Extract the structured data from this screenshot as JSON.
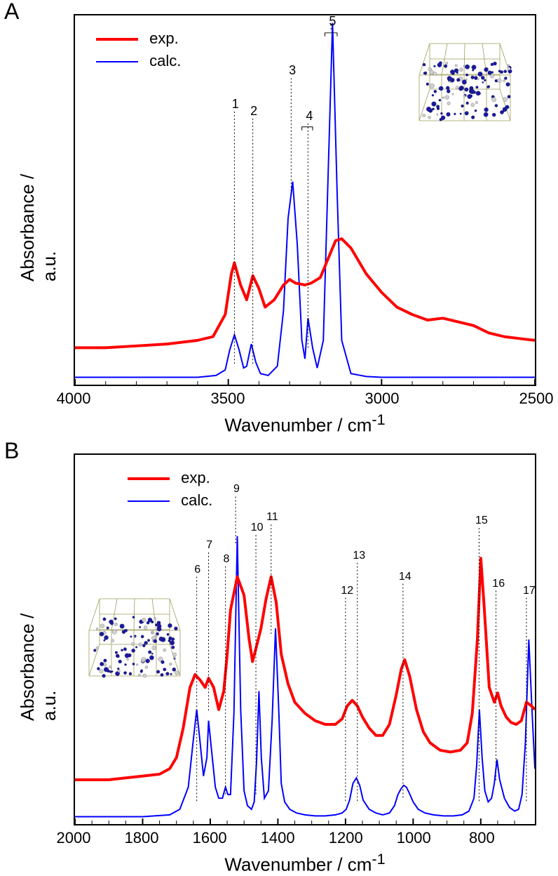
{
  "panelA": {
    "label": "A",
    "legend": {
      "exp": "exp.",
      "calc": "calc."
    },
    "colors": {
      "exp": "#ff0000",
      "calc": "#0000ff",
      "axis": "#000000",
      "text": "#000000",
      "bg": "#ffffff"
    },
    "line_width_exp": 4,
    "line_width_calc": 2,
    "xlabel": "Wavenumber / cm",
    "xlabel_sup": "-1",
    "ylabel": "Absorbance / a.u.",
    "xlim": [
      4000,
      2500
    ],
    "xticks": [
      4000,
      3500,
      3000,
      2500
    ],
    "fontsize_label": 26,
    "fontsize_tick": 22,
    "fontsize_peak": 18,
    "peak_labels": [
      "1",
      "2",
      "3",
      "4",
      "5"
    ],
    "peak_x_positions": [
      3480,
      3420,
      3295,
      3240,
      3165
    ],
    "exp_curve": {
      "x": [
        4000,
        3900,
        3800,
        3700,
        3600,
        3550,
        3510,
        3490,
        3480,
        3460,
        3440,
        3420,
        3400,
        3380,
        3350,
        3320,
        3300,
        3280,
        3250,
        3230,
        3200,
        3180,
        3150,
        3130,
        3100,
        3050,
        3000,
        2950,
        2900,
        2850,
        2800,
        2750,
        2700,
        2650,
        2600,
        2550,
        2500
      ],
      "y": [
        0.1,
        0.1,
        0.105,
        0.11,
        0.12,
        0.13,
        0.19,
        0.3,
        0.33,
        0.27,
        0.23,
        0.295,
        0.26,
        0.21,
        0.23,
        0.27,
        0.285,
        0.275,
        0.27,
        0.275,
        0.29,
        0.33,
        0.39,
        0.395,
        0.37,
        0.3,
        0.25,
        0.21,
        0.19,
        0.175,
        0.18,
        0.17,
        0.16,
        0.14,
        0.13,
        0.125,
        0.12
      ]
    },
    "calc_curve": {
      "x": [
        4000,
        3600,
        3540,
        3510,
        3495,
        3480,
        3465,
        3450,
        3440,
        3425,
        3410,
        3395,
        3370,
        3340,
        3320,
        3305,
        3290,
        3275,
        3260,
        3250,
        3240,
        3225,
        3210,
        3190,
        3175,
        3160,
        3145,
        3130,
        3100,
        3050,
        3000,
        2900,
        2800,
        2700,
        2600,
        2500
      ],
      "y": [
        0.02,
        0.02,
        0.025,
        0.04,
        0.095,
        0.135,
        0.095,
        0.045,
        0.05,
        0.11,
        0.06,
        0.03,
        0.025,
        0.05,
        0.2,
        0.45,
        0.55,
        0.38,
        0.12,
        0.07,
        0.18,
        0.1,
        0.045,
        0.12,
        0.55,
        0.98,
        0.52,
        0.12,
        0.03,
        0.022,
        0.02,
        0.02,
        0.02,
        0.02,
        0.02,
        0.02
      ]
    }
  },
  "panelB": {
    "label": "B",
    "legend": {
      "exp": "exp.",
      "calc": "calc."
    },
    "colors": {
      "exp": "#ff0000",
      "calc": "#0000ff",
      "axis": "#000000",
      "text": "#000000",
      "bg": "#ffffff",
      "inset_grid": "#9d9d5a",
      "inset_atom1": "#1a1aa0",
      "inset_atom2": "#d0d0d0"
    },
    "line_width_exp": 4,
    "line_width_calc": 2,
    "xlabel": "Wavenumber / cm",
    "xlabel_sup": "-1",
    "ylabel": "Absorbance / a.u.",
    "xlim": [
      2000,
      640
    ],
    "xticks": [
      2000,
      1800,
      1600,
      1400,
      1200,
      1000,
      800
    ],
    "fontsize_label": 26,
    "fontsize_tick": 22,
    "fontsize_peak": 16,
    "peak_labels": [
      "6",
      "7",
      "8",
      "9",
      "10",
      "11",
      "12",
      "13",
      "14",
      "15",
      "16",
      "17"
    ],
    "peak_x_positions": [
      1640,
      1605,
      1555,
      1525,
      1465,
      1420,
      1200,
      1165,
      1030,
      805,
      755,
      665
    ],
    "exp_curve": {
      "x": [
        2000,
        1900,
        1800,
        1750,
        1720,
        1700,
        1680,
        1660,
        1645,
        1630,
        1615,
        1605,
        1590,
        1575,
        1560,
        1550,
        1540,
        1520,
        1500,
        1485,
        1475,
        1465,
        1450,
        1435,
        1420,
        1405,
        1390,
        1370,
        1350,
        1320,
        1290,
        1260,
        1230,
        1210,
        1195,
        1180,
        1165,
        1150,
        1130,
        1110,
        1090,
        1070,
        1050,
        1035,
        1025,
        1010,
        990,
        970,
        950,
        920,
        890,
        860,
        840,
        825,
        810,
        800,
        790,
        775,
        760,
        750,
        740,
        725,
        710,
        695,
        680,
        665,
        650,
        640
      ],
      "y": [
        0.12,
        0.12,
        0.13,
        0.135,
        0.15,
        0.18,
        0.26,
        0.37,
        0.405,
        0.39,
        0.37,
        0.395,
        0.37,
        0.31,
        0.36,
        0.46,
        0.58,
        0.67,
        0.62,
        0.5,
        0.44,
        0.475,
        0.53,
        0.61,
        0.67,
        0.6,
        0.46,
        0.38,
        0.33,
        0.3,
        0.28,
        0.27,
        0.27,
        0.285,
        0.32,
        0.335,
        0.32,
        0.29,
        0.26,
        0.24,
        0.24,
        0.27,
        0.35,
        0.42,
        0.445,
        0.4,
        0.31,
        0.25,
        0.22,
        0.2,
        0.195,
        0.2,
        0.22,
        0.3,
        0.5,
        0.72,
        0.59,
        0.37,
        0.33,
        0.355,
        0.32,
        0.29,
        0.275,
        0.27,
        0.28,
        0.33,
        0.32,
        0.31
      ]
    },
    "calc_curve": {
      "x": [
        2000,
        1800,
        1720,
        1690,
        1665,
        1650,
        1640,
        1630,
        1620,
        1610,
        1605,
        1595,
        1585,
        1575,
        1564,
        1555,
        1548,
        1540,
        1530,
        1520,
        1510,
        1500,
        1490,
        1478,
        1470,
        1463,
        1456,
        1449,
        1440,
        1428,
        1417,
        1407,
        1397,
        1390,
        1380,
        1365,
        1345,
        1320,
        1290,
        1260,
        1230,
        1210,
        1198,
        1188,
        1178,
        1168,
        1158,
        1148,
        1130,
        1110,
        1090,
        1070,
        1055,
        1045,
        1036,
        1028,
        1020,
        1012,
        1000,
        985,
        965,
        940,
        910,
        880,
        855,
        835,
        820,
        812,
        804,
        796,
        788,
        778,
        768,
        760,
        752,
        744,
        730,
        715,
        700,
        688,
        678,
        668,
        658,
        648,
        640
      ],
      "y": [
        0.02,
        0.02,
        0.025,
        0.04,
        0.1,
        0.23,
        0.31,
        0.22,
        0.13,
        0.18,
        0.28,
        0.19,
        0.1,
        0.07,
        0.07,
        0.1,
        0.08,
        0.08,
        0.3,
        0.78,
        0.31,
        0.09,
        0.05,
        0.04,
        0.06,
        0.17,
        0.36,
        0.18,
        0.07,
        0.09,
        0.28,
        0.53,
        0.3,
        0.11,
        0.06,
        0.04,
        0.03,
        0.025,
        0.022,
        0.022,
        0.025,
        0.03,
        0.04,
        0.065,
        0.11,
        0.125,
        0.105,
        0.065,
        0.04,
        0.03,
        0.025,
        0.03,
        0.05,
        0.08,
        0.095,
        0.105,
        0.1,
        0.085,
        0.06,
        0.04,
        0.03,
        0.025,
        0.022,
        0.022,
        0.025,
        0.035,
        0.07,
        0.16,
        0.31,
        0.18,
        0.09,
        0.06,
        0.07,
        0.11,
        0.175,
        0.12,
        0.07,
        0.045,
        0.035,
        0.04,
        0.08,
        0.22,
        0.5,
        0.3,
        0.15
      ]
    }
  }
}
